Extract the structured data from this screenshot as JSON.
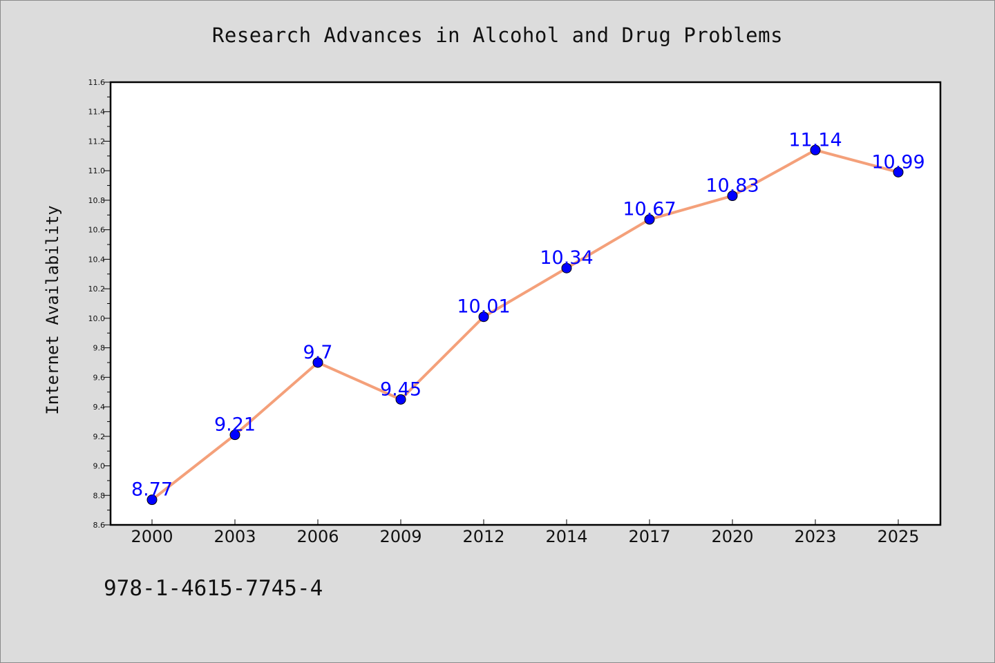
{
  "chart_data": {
    "type": "line",
    "title": "Research Advances in Alcohol and Drug Problems",
    "xlabel": "",
    "ylabel": "Internet Availability",
    "categories": [
      "2000",
      "2003",
      "2006",
      "2009",
      "2012",
      "2014",
      "2017",
      "2020",
      "2023",
      "2025"
    ],
    "series": [
      {
        "values": [
          8.77,
          9.21,
          9.7,
          9.45,
          10.01,
          10.34,
          10.67,
          10.83,
          11.14,
          10.99
        ],
        "data_labels": [
          "8.77",
          "9.21",
          "9.7",
          "9.45",
          "10.01",
          "10.34",
          "10.67",
          "10.83",
          "11.14",
          "10.99"
        ],
        "line_color": "#f4a07a",
        "marker_color": "#0000ff"
      }
    ],
    "ylim": [
      8.6,
      11.6
    ],
    "yticks": [
      "8.6",
      "8.8",
      "9.0",
      "9.2",
      "9.4",
      "9.6",
      "9.8",
      "10.0",
      "10.2",
      "10.4",
      "10.6",
      "10.8",
      "11.0",
      "11.2",
      "11.4",
      "11.6"
    ],
    "grid": false,
    "legend": "none"
  },
  "annotation": "978-1-4615-7745-4"
}
